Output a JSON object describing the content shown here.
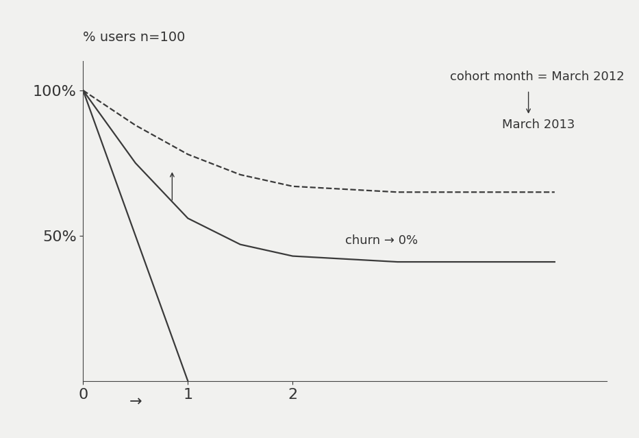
{
  "chart_data": {
    "type": "line",
    "y_label": "% users n=100",
    "annotations": [
      "cohort month = March 2012",
      "March 2013",
      "churn → 0%",
      "→"
    ],
    "series": [
      {
        "x": [
          0,
          1
        ],
        "values": [
          100,
          0
        ],
        "color": "#3a3a3a",
        "line_style": "solid"
      },
      {
        "x": [
          0,
          0.5,
          1,
          1.5,
          2,
          3,
          4.5
        ],
        "values": [
          100,
          75,
          56,
          47,
          43,
          41,
          41
        ],
        "color": "#3a3a3a",
        "line_style": "solid"
      },
      {
        "x": [
          0,
          0.5,
          1,
          1.5,
          2,
          3,
          4.5
        ],
        "values": [
          100,
          88,
          78,
          71,
          67,
          65,
          65
        ],
        "color": "#3a3a3a",
        "line_style": "dashed"
      }
    ],
    "xlim": [
      0,
      5
    ],
    "ylim": [
      0,
      110
    ],
    "xticks": [
      0,
      1,
      2
    ],
    "yticks": [
      {
        "value": 50,
        "label": "50%"
      },
      {
        "value": 100,
        "label": "100%"
      }
    ],
    "grid": false
  }
}
